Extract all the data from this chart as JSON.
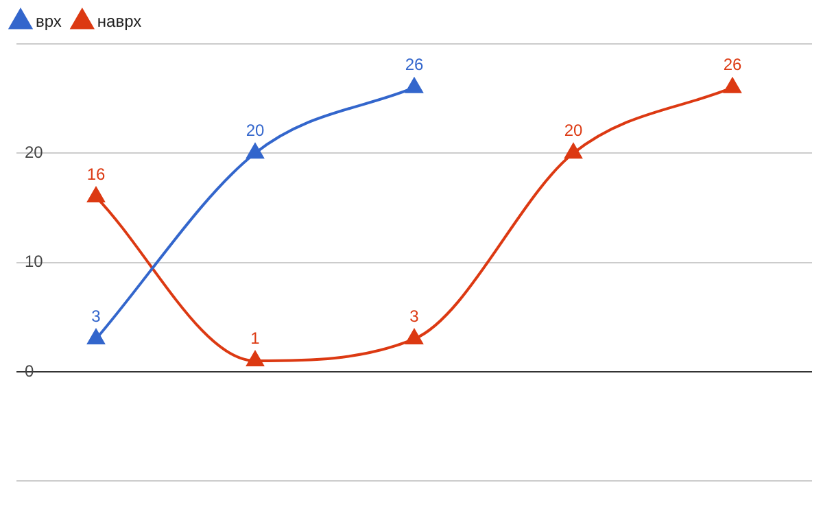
{
  "chart_data": {
    "type": "line",
    "categories": [
      null,
      null,
      null,
      null,
      null
    ],
    "series": [
      {
        "name": "врх",
        "color": "#3366cc",
        "values": [
          3,
          20,
          26,
          null,
          null
        ]
      },
      {
        "name": "наврх",
        "color": "#dc3912",
        "values": [
          16,
          1,
          3,
          20,
          26
        ]
      }
    ],
    "ylim": [
      -10,
      30
    ],
    "yticks": [
      {
        "value": -10,
        "label": null
      },
      0,
      10,
      20,
      {
        "value": 30,
        "label": null
      }
    ],
    "grid": "y",
    "legend": "top left",
    "marker": "triangle",
    "data_labels": true
  }
}
